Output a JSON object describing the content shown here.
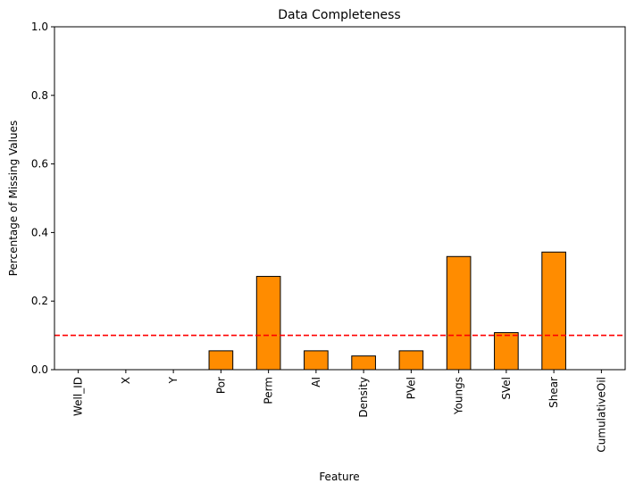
{
  "chart_data": {
    "type": "bar",
    "title": "Data Completeness",
    "xlabel": "Feature",
    "ylabel": "Percentage of Missing Values",
    "ylim": [
      0,
      1.0
    ],
    "yticks": [
      "0.0",
      "0.2",
      "0.4",
      "0.6",
      "0.8",
      "1.0"
    ],
    "categories": [
      "Well_ID",
      "X",
      "Y",
      "Por",
      "Perm",
      "AI",
      "Density",
      "PVel",
      "Youngs",
      "SVel",
      "Shear",
      "CumulativeOil"
    ],
    "values": [
      0.0,
      0.0,
      0.0,
      0.055,
      0.272,
      0.055,
      0.04,
      0.055,
      0.33,
      0.108,
      0.343,
      0.0
    ],
    "threshold": 0.1,
    "bar_color": "#ff8c00",
    "bar_edge_color": "#000000",
    "threshold_color": "#ff0000",
    "threshold_style": "dashed",
    "grid": false
  }
}
